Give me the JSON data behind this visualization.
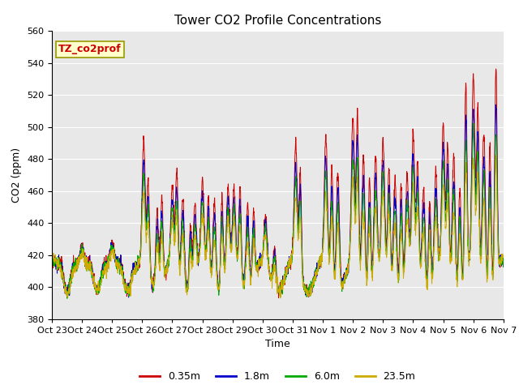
{
  "title": "Tower CO2 Profile Concentrations",
  "xlabel": "Time",
  "ylabel": "CO2 (ppm)",
  "ylim": [
    380,
    560
  ],
  "yticks": [
    380,
    400,
    420,
    440,
    460,
    480,
    500,
    520,
    540,
    560
  ],
  "series_labels": [
    "0.35m",
    "1.8m",
    "6.0m",
    "23.5m"
  ],
  "series_colors": [
    "#cc0000",
    "#0000cc",
    "#00aa00",
    "#ccaa00"
  ],
  "annotation_text": "TZ_co2prof",
  "annotation_color": "#cc0000",
  "annotation_bg": "#ffffcc",
  "annotation_border": "#999900",
  "plot_bg": "#e8e8e8",
  "fig_bg": "#ffffff",
  "grid_color": "#ffffff",
  "title_fontsize": 11,
  "tick_fontsize": 8,
  "label_fontsize": 9,
  "legend_fontsize": 9
}
